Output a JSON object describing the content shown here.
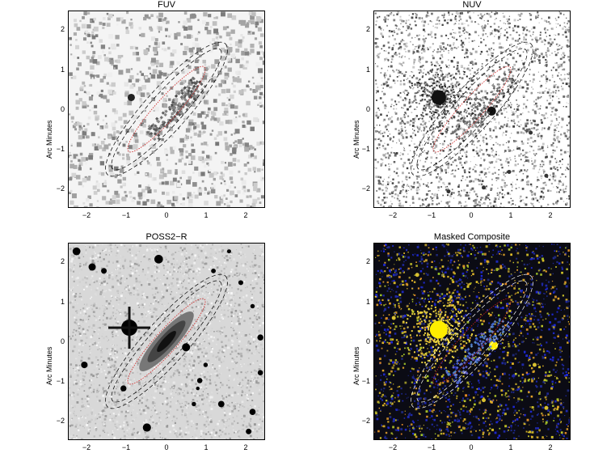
{
  "panels": [
    {
      "title": "FUV",
      "ylabel": "Arc Minutes",
      "style": "fuv"
    },
    {
      "title": "NUV",
      "ylabel": "Arc Minutes",
      "style": "nuv"
    },
    {
      "title": "POSS2−R",
      "ylabel": "Arc Minutes",
      "style": "poss"
    },
    {
      "title": "Masked Composite",
      "ylabel": "Arc Minutes",
      "style": "composite"
    }
  ],
  "axes": {
    "xticks": [
      "−2",
      "−1",
      "0",
      "1",
      "2"
    ],
    "yticks": [
      "2",
      "1",
      "0",
      "−1",
      "−2"
    ],
    "range": [
      -2.5,
      2.5
    ]
  },
  "colors": {
    "inner_ellipse": "#d03030",
    "outer_ellipse": "#000000",
    "composite_outer_ellipse": "#ffffff",
    "composite_inner_ellipse": "#c02020"
  }
}
